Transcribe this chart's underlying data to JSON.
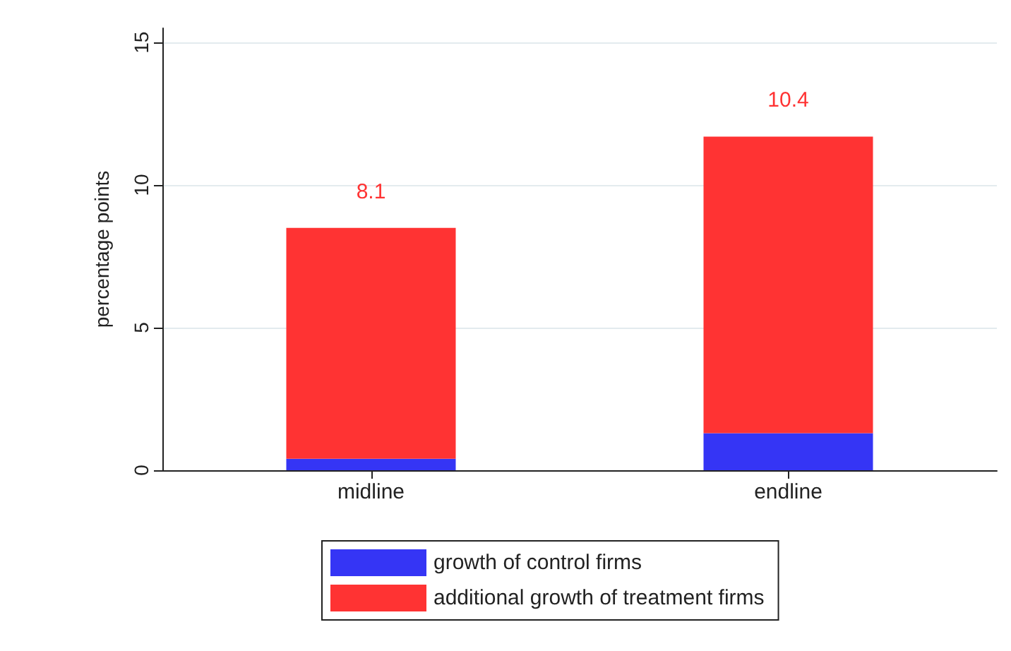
{
  "chart_data": {
    "type": "bar",
    "stacked": true,
    "categories": [
      "midline",
      "endline"
    ],
    "series": [
      {
        "name": "growth of control firms",
        "color": "#3535f5",
        "values": [
          0.4,
          1.3
        ]
      },
      {
        "name": "additional growth of treatment firms",
        "color": "#ff3333",
        "values": [
          8.1,
          10.4
        ],
        "value_labels": [
          "8.1",
          "10.4"
        ]
      }
    ],
    "ylabel": "percentage points",
    "ylim": [
      0,
      15.5
    ],
    "yticks": [
      0,
      5,
      10,
      15
    ],
    "grid": "y",
    "legend": "bottom"
  }
}
